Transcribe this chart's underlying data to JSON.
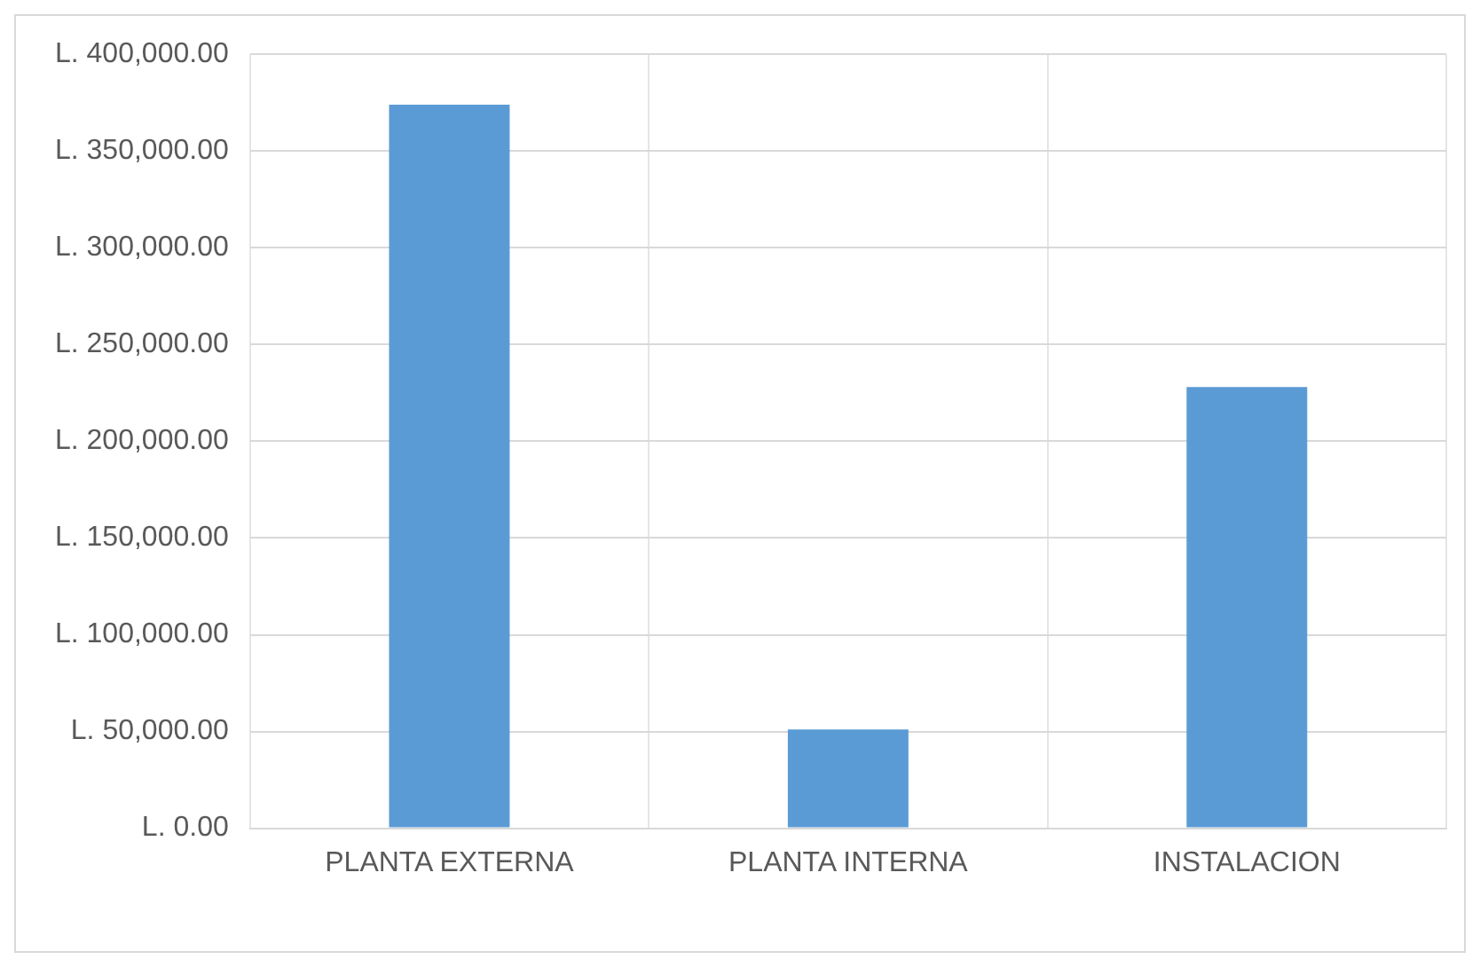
{
  "chart_data": {
    "type": "bar",
    "categories": [
      "PLANTA EXTERNA",
      "PLANTA INTERNA",
      "INSTALACION"
    ],
    "values": [
      374000,
      51000,
      228000
    ],
    "color": "#5b9bd5",
    "ylim": [
      0,
      400000
    ],
    "yticks": [
      {
        "value": 0,
        "label": "L. 0.00"
      },
      {
        "value": 50000,
        "label": "L. 50,000.00"
      },
      {
        "value": 100000,
        "label": "L. 100,000.00"
      },
      {
        "value": 150000,
        "label": "L. 150,000.00"
      },
      {
        "value": 200000,
        "label": "L. 200,000.00"
      },
      {
        "value": 250000,
        "label": "L. 250,000.00"
      },
      {
        "value": 300000,
        "label": "L. 300,000.00"
      },
      {
        "value": 350000,
        "label": "L. 350,000.00"
      },
      {
        "value": 400000,
        "label": "L. 400,000.00"
      }
    ],
    "grid": true
  }
}
